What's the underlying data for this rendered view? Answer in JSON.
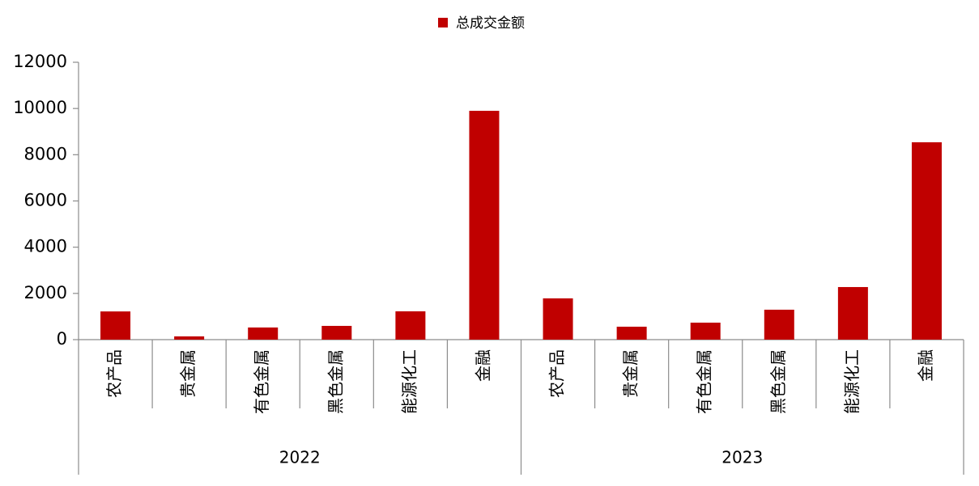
{
  "chart_data": {
    "type": "bar",
    "legend": "总成交金额",
    "color": "#c00000",
    "categories": [
      "农产品",
      "贵金属",
      "有色金属",
      "黑色金属",
      "能源化工",
      "金融",
      "农产品",
      "贵金属",
      "有色金属",
      "黑色金属",
      "能源化工",
      "金融"
    ],
    "category_groups": [
      "2022",
      "2023"
    ],
    "values": [
      1220,
      140,
      525,
      595,
      1225,
      9900,
      1785,
      560,
      735,
      1295,
      2275,
      8540
    ],
    "ylim": [
      0,
      12000
    ],
    "yticks": [
      0,
      2000,
      4000,
      6000,
      8000,
      10000,
      12000
    ]
  }
}
